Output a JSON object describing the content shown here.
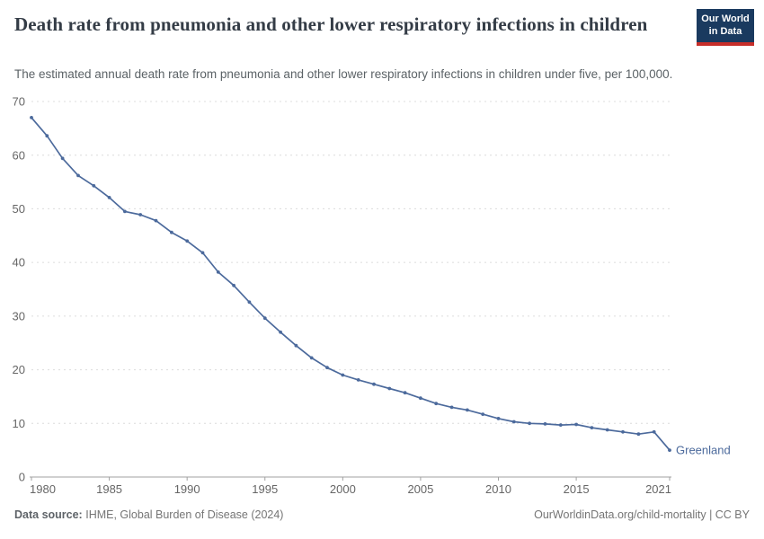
{
  "header": {
    "title": "Death rate from pneumonia and other lower respiratory infections in children",
    "subtitle": "The estimated annual death rate from pneumonia and other lower respiratory infections in children under five, per 100,000.",
    "logo": {
      "line1": "Our World",
      "line2": "in Data"
    }
  },
  "chart_data": {
    "type": "line",
    "title": "Death rate from pneumonia and other lower respiratory infections in children",
    "xlabel": "",
    "ylabel": "",
    "xlim": [
      1980,
      2021
    ],
    "ylim": [
      0,
      70
    ],
    "xticks": [
      1980,
      1985,
      1990,
      1995,
      2000,
      2005,
      2010,
      2015,
      2021
    ],
    "yticks": [
      0,
      10,
      20,
      30,
      40,
      50,
      60,
      70
    ],
    "grid": "horizontal-dashed",
    "legend_position": "end-of-line",
    "series": [
      {
        "name": "Greenland",
        "color": "#4C6A9C",
        "x": [
          1980,
          1981,
          1982,
          1983,
          1984,
          1985,
          1986,
          1987,
          1988,
          1989,
          1990,
          1991,
          1992,
          1993,
          1994,
          1995,
          1996,
          1997,
          1998,
          1999,
          2000,
          2001,
          2002,
          2003,
          2004,
          2005,
          2006,
          2007,
          2008,
          2009,
          2010,
          2011,
          2012,
          2013,
          2014,
          2015,
          2016,
          2017,
          2018,
          2019,
          2020,
          2021
        ],
        "values": [
          67.0,
          63.6,
          59.4,
          56.2,
          54.3,
          52.1,
          49.5,
          48.9,
          47.8,
          45.6,
          44.0,
          41.8,
          38.2,
          35.7,
          32.6,
          29.6,
          27.0,
          24.5,
          22.2,
          20.4,
          19.0,
          18.1,
          17.3,
          16.5,
          15.7,
          14.7,
          13.7,
          13.0,
          12.5,
          11.7,
          10.9,
          10.3,
          10.0,
          9.9,
          9.7,
          9.8,
          9.2,
          8.8,
          8.4,
          8.0,
          8.4,
          5.0
        ]
      }
    ]
  },
  "colors": {
    "line": "#4C6A9C",
    "gridline": "#dcdcdc",
    "axis": "#a1a1a1",
    "tick_text": "#666666",
    "logo_navy": "#1a3a5f",
    "logo_red": "#c72e29"
  },
  "footer": {
    "source_label": "Data source:",
    "source_value": "IHME, Global Burden of Disease (2024)",
    "attribution": "OurWorldinData.org/child-mortality | CC BY"
  }
}
